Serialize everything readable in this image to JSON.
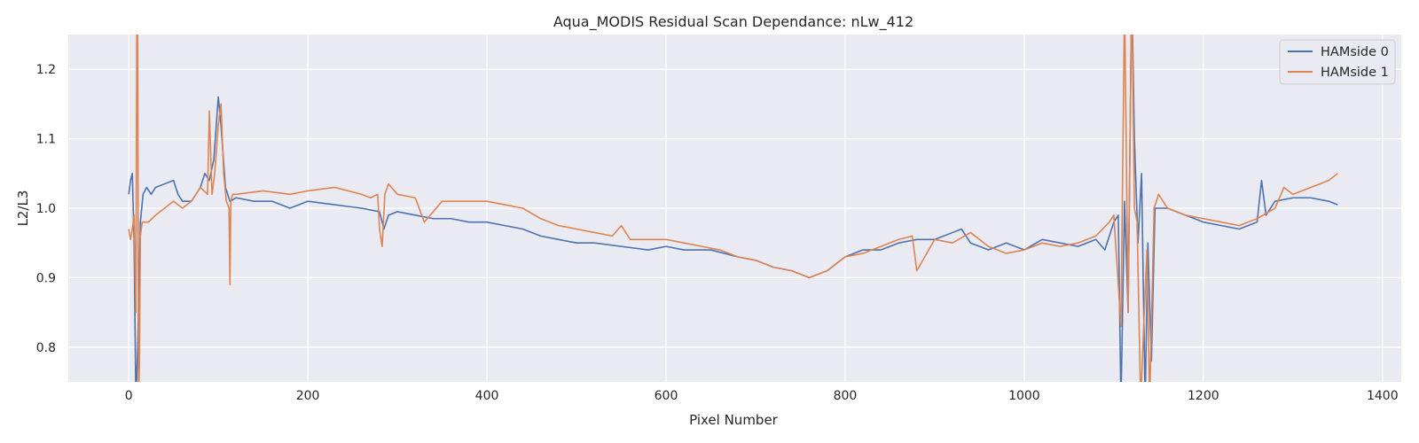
{
  "chart_data": {
    "type": "line",
    "title": "Aqua_MODIS Residual Scan Dependance: nLw_412",
    "xlabel": "Pixel Number",
    "ylabel": "L2/L3",
    "xlim": [
      -67.5,
      1421
    ],
    "ylim": [
      0.75,
      1.25
    ],
    "xticks": [
      0,
      200,
      400,
      600,
      800,
      1000,
      1200,
      1400
    ],
    "yticks": [
      0.8,
      0.9,
      1.0,
      1.1,
      1.2
    ],
    "ytick_labels": [
      "0.8",
      "0.9",
      "1.0",
      "1.1",
      "1.2"
    ],
    "grid": true,
    "legend_position": "top-right",
    "series": [
      {
        "name": "HAMside 0",
        "color": "#4c72b0",
        "x": [
          0,
          2,
          4,
          6,
          8,
          10,
          13,
          16,
          20,
          25,
          30,
          40,
          50,
          55,
          60,
          70,
          80,
          85,
          90,
          95,
          100,
          103,
          108,
          113,
          120,
          140,
          160,
          180,
          200,
          230,
          260,
          280,
          285,
          290,
          300,
          320,
          340,
          360,
          380,
          400,
          420,
          440,
          460,
          480,
          500,
          520,
          550,
          580,
          600,
          620,
          650,
          680,
          700,
          720,
          740,
          760,
          780,
          800,
          820,
          840,
          860,
          880,
          900,
          920,
          930,
          940,
          960,
          980,
          1000,
          1020,
          1040,
          1060,
          1080,
          1090,
          1100,
          1105,
          1108,
          1112,
          1116,
          1120,
          1123,
          1127,
          1131,
          1135,
          1138,
          1142,
          1146,
          1150,
          1160,
          1180,
          1200,
          1220,
          1240,
          1260,
          1265,
          1270,
          1280,
          1300,
          1320,
          1340,
          1350
        ],
        "y": [
          1.02,
          1.04,
          1.05,
          0.95,
          0.72,
          0.8,
          0.98,
          1.02,
          1.03,
          1.02,
          1.03,
          1.035,
          1.04,
          1.02,
          1.01,
          1.01,
          1.03,
          1.05,
          1.04,
          1.07,
          1.16,
          1.12,
          1.03,
          1.01,
          1.015,
          1.01,
          1.01,
          1.0,
          1.01,
          1.005,
          1.0,
          0.995,
          0.97,
          0.99,
          0.995,
          0.99,
          0.985,
          0.985,
          0.98,
          0.98,
          0.975,
          0.97,
          0.96,
          0.955,
          0.95,
          0.95,
          0.945,
          0.94,
          0.945,
          0.94,
          0.94,
          0.93,
          0.925,
          0.915,
          0.91,
          0.9,
          0.91,
          0.93,
          0.94,
          0.94,
          0.95,
          0.955,
          0.955,
          0.965,
          0.97,
          0.95,
          0.94,
          0.95,
          0.94,
          0.955,
          0.95,
          0.945,
          0.955,
          0.94,
          0.98,
          0.99,
          0.72,
          1.01,
          0.85,
          1.32,
          1.1,
          0.95,
          1.05,
          0.72,
          0.95,
          0.78,
          1.0,
          1.0,
          1.0,
          0.99,
          0.98,
          0.975,
          0.97,
          0.98,
          1.04,
          0.99,
          1.01,
          1.015,
          1.015,
          1.01,
          1.005
        ]
      },
      {
        "name": "HAMside 1",
        "color": "#dd8452",
        "x": [
          0,
          2,
          4,
          6,
          8,
          9,
          10,
          11,
          12,
          13,
          15,
          18,
          22,
          30,
          40,
          50,
          60,
          70,
          80,
          88,
          90,
          93,
          96,
          100,
          103,
          106,
          109,
          112,
          113,
          114,
          116,
          120,
          150,
          180,
          200,
          230,
          260,
          270,
          278,
          280,
          283,
          286,
          290,
          300,
          320,
          330,
          350,
          380,
          400,
          420,
          440,
          460,
          480,
          500,
          520,
          540,
          550,
          560,
          580,
          600,
          620,
          640,
          660,
          680,
          700,
          720,
          740,
          760,
          780,
          800,
          820,
          840,
          860,
          875,
          880,
          900,
          920,
          940,
          960,
          980,
          1000,
          1020,
          1040,
          1060,
          1080,
          1095,
          1100,
          1108,
          1112,
          1116,
          1120,
          1123,
          1126,
          1130,
          1134,
          1137,
          1140,
          1145,
          1150,
          1160,
          1180,
          1200,
          1220,
          1240,
          1260,
          1280,
          1290,
          1300,
          1320,
          1340,
          1350
        ],
        "y": [
          0.97,
          0.955,
          0.97,
          0.99,
          0.85,
          1.27,
          1.26,
          0.72,
          0.78,
          0.96,
          0.98,
          0.98,
          0.98,
          0.99,
          1.0,
          1.01,
          1.0,
          1.01,
          1.03,
          1.02,
          1.14,
          1.02,
          1.05,
          1.12,
          1.15,
          1.05,
          1.01,
          1.0,
          0.89,
          1.01,
          1.02,
          1.02,
          1.025,
          1.02,
          1.025,
          1.03,
          1.02,
          1.015,
          1.02,
          0.97,
          0.945,
          1.02,
          1.035,
          1.02,
          1.015,
          0.98,
          1.01,
          1.01,
          1.01,
          1.005,
          1.0,
          0.985,
          0.975,
          0.97,
          0.965,
          0.96,
          0.975,
          0.955,
          0.955,
          0.955,
          0.95,
          0.945,
          0.94,
          0.93,
          0.925,
          0.915,
          0.91,
          0.9,
          0.91,
          0.93,
          0.935,
          0.945,
          0.955,
          0.96,
          0.91,
          0.955,
          0.95,
          0.965,
          0.945,
          0.935,
          0.94,
          0.95,
          0.945,
          0.95,
          0.96,
          0.98,
          0.99,
          0.83,
          1.3,
          0.85,
          1.32,
          1.0,
          0.98,
          0.72,
          0.85,
          0.94,
          0.72,
          1.0,
          1.02,
          1.0,
          0.99,
          0.985,
          0.98,
          0.975,
          0.985,
          1.0,
          1.03,
          1.02,
          1.03,
          1.04,
          1.05
        ]
      }
    ]
  }
}
